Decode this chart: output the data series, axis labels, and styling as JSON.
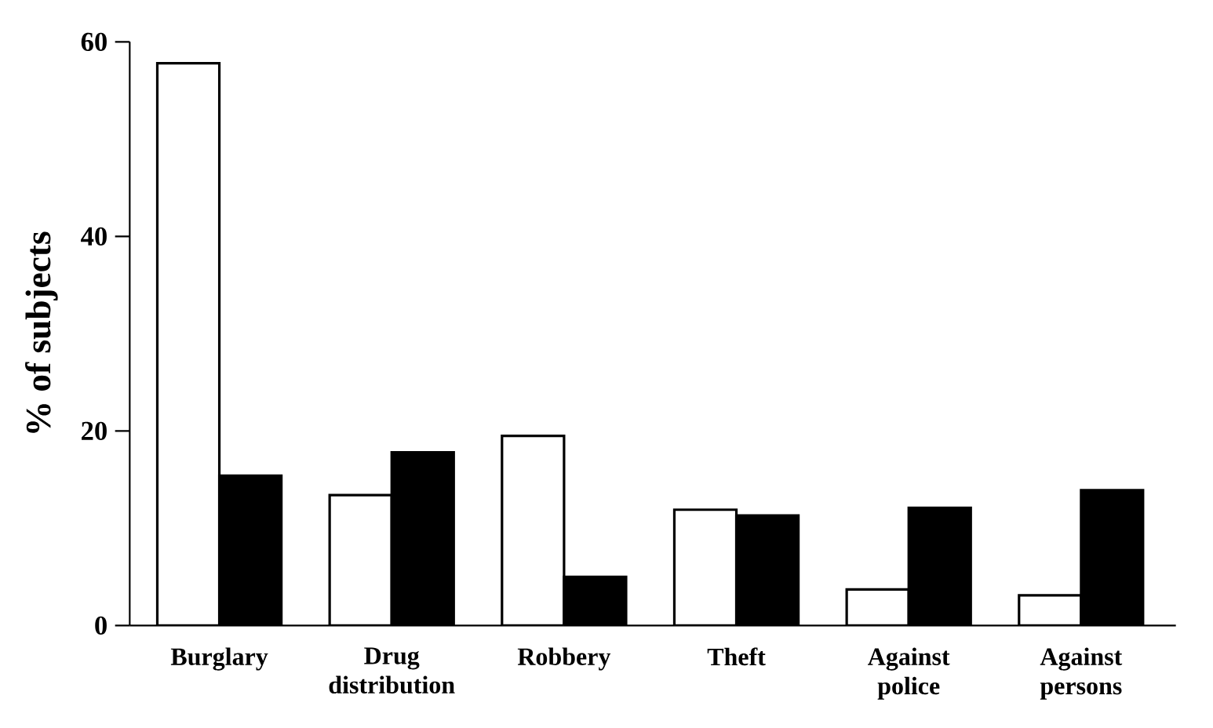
{
  "chart_data": {
    "type": "bar",
    "ylabel": "% of subjects",
    "categories": [
      "Burglary",
      "Drug distribution",
      "Robbery",
      "Theft",
      "Against police",
      "Against persons"
    ],
    "series": [
      {
        "color": "#ffffff",
        "values": [
          57.8,
          13.4,
          19.5,
          11.9,
          3.7,
          3.1
        ]
      },
      {
        "color": "#000000",
        "values": [
          15.4,
          17.8,
          5.0,
          11.3,
          12.1,
          13.9
        ]
      }
    ],
    "ylim": [
      0,
      60
    ],
    "yticks": [
      0,
      20,
      40,
      60
    ],
    "grid": false
  }
}
